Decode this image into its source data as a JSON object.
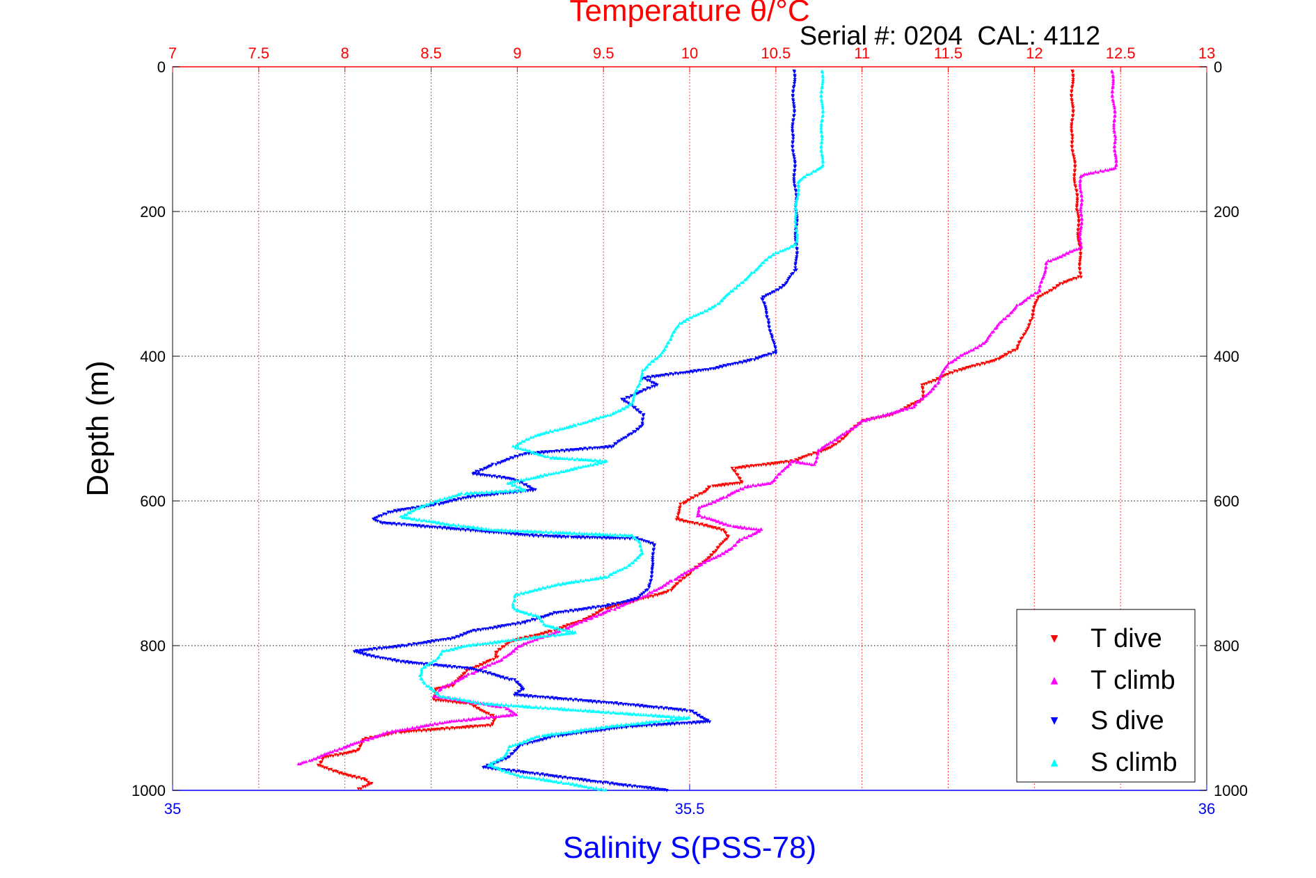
{
  "chart_data": {
    "type": "scatter",
    "title": "Temperature θ/°C",
    "subtitle": "Serial #: 0204  CAL: 4112",
    "xlabel": "Salinity S(PSS-78)",
    "ylabel": "Depth (m)",
    "temperature_axis": {
      "label": "Temperature θ/°C",
      "range": [
        7,
        13
      ],
      "ticks": [
        "7",
        "7.5",
        "8",
        "8.5",
        "9",
        "9.5",
        "10",
        "10.5",
        "11",
        "11.5",
        "12",
        "12.5",
        "13"
      ],
      "color": "#ff0000"
    },
    "salinity_axis": {
      "label": "Salinity S(PSS-78)",
      "range": [
        35,
        36
      ],
      "ticks": [
        "35",
        "35.5",
        "36"
      ],
      "color": "#0000ff"
    },
    "depth_axis": {
      "range": [
        0,
        1000
      ],
      "reversed": true,
      "ticks": [
        "0",
        "200",
        "400",
        "600",
        "800",
        "1000"
      ]
    },
    "grid": true,
    "legend_position": "bottom-right",
    "series": [
      {
        "name": "T dive",
        "axis": "temperature",
        "color": "#ff0000",
        "marker": "triangle-down",
        "points": [
          [
            12.22,
            5
          ],
          [
            12.22,
            100
          ],
          [
            12.25,
            200
          ],
          [
            12.27,
            290
          ],
          [
            12.15,
            300
          ],
          [
            12.02,
            320
          ],
          [
            11.98,
            350
          ],
          [
            11.9,
            390
          ],
          [
            11.78,
            405
          ],
          [
            11.55,
            420
          ],
          [
            11.35,
            440
          ],
          [
            11.35,
            460
          ],
          [
            11.18,
            480
          ],
          [
            11.0,
            490
          ],
          [
            10.83,
            525
          ],
          [
            10.6,
            545
          ],
          [
            10.25,
            555
          ],
          [
            10.3,
            575
          ],
          [
            10.12,
            580
          ],
          [
            10.08,
            588
          ],
          [
            9.95,
            605
          ],
          [
            9.92,
            625
          ],
          [
            10.2,
            640
          ],
          [
            10.22,
            650
          ],
          [
            10.15,
            670
          ],
          [
            10.0,
            700
          ],
          [
            9.88,
            725
          ],
          [
            9.65,
            740
          ],
          [
            9.5,
            750
          ],
          [
            9.38,
            765
          ],
          [
            9.2,
            780
          ],
          [
            8.95,
            795
          ],
          [
            8.88,
            810
          ],
          [
            8.88,
            815
          ],
          [
            8.85,
            820
          ],
          [
            8.7,
            835
          ],
          [
            8.63,
            855
          ],
          [
            8.52,
            860
          ],
          [
            8.52,
            875
          ],
          [
            8.72,
            880
          ],
          [
            8.88,
            900
          ],
          [
            8.85,
            910
          ],
          [
            8.3,
            920
          ],
          [
            8.1,
            930
          ],
          [
            8.08,
            945
          ],
          [
            7.87,
            955
          ],
          [
            7.85,
            965
          ],
          [
            7.95,
            975
          ],
          [
            8.12,
            985
          ],
          [
            8.15,
            990
          ],
          [
            8.07,
            1000
          ]
        ]
      },
      {
        "name": "T climb",
        "axis": "temperature",
        "color": "#ff00ff",
        "marker": "triangle-up",
        "points": [
          [
            12.45,
            5
          ],
          [
            12.47,
            100
          ],
          [
            12.47,
            140
          ],
          [
            12.27,
            150
          ],
          [
            12.27,
            200
          ],
          [
            12.27,
            250
          ],
          [
            12.07,
            270
          ],
          [
            12.03,
            310
          ],
          [
            11.9,
            330
          ],
          [
            11.78,
            360
          ],
          [
            11.72,
            380
          ],
          [
            11.5,
            410
          ],
          [
            11.43,
            440
          ],
          [
            11.3,
            470
          ],
          [
            11.0,
            490
          ],
          [
            10.85,
            515
          ],
          [
            10.75,
            530
          ],
          [
            10.72,
            550
          ],
          [
            10.6,
            545
          ],
          [
            10.55,
            555
          ],
          [
            10.48,
            575
          ],
          [
            10.33,
            580
          ],
          [
            10.2,
            595
          ],
          [
            10.05,
            610
          ],
          [
            10.05,
            620
          ],
          [
            10.25,
            635
          ],
          [
            10.42,
            640
          ],
          [
            10.28,
            655
          ],
          [
            10.25,
            665
          ],
          [
            10.05,
            690
          ],
          [
            9.9,
            710
          ],
          [
            9.75,
            730
          ],
          [
            9.55,
            750
          ],
          [
            9.42,
            762
          ],
          [
            9.25,
            780
          ],
          [
            9.12,
            790
          ],
          [
            9.02,
            800
          ],
          [
            8.9,
            820
          ],
          [
            8.72,
            840
          ],
          [
            8.55,
            860
          ],
          [
            8.52,
            870
          ],
          [
            8.92,
            885
          ],
          [
            9.0,
            895
          ],
          [
            8.6,
            905
          ],
          [
            8.25,
            920
          ],
          [
            8.0,
            940
          ],
          [
            7.78,
            960
          ],
          [
            7.72,
            965
          ]
        ]
      },
      {
        "name": "S dive",
        "axis": "salinity",
        "color": "#0000ff",
        "marker": "triangle-down",
        "points": [
          [
            35.601,
            5
          ],
          [
            35.6,
            100
          ],
          [
            35.603,
            200
          ],
          [
            35.603,
            280
          ],
          [
            35.593,
            300
          ],
          [
            35.58,
            312
          ],
          [
            35.57,
            320
          ],
          [
            35.576,
            350
          ],
          [
            35.58,
            375
          ],
          [
            35.583,
            395
          ],
          [
            35.56,
            405
          ],
          [
            35.52,
            418
          ],
          [
            35.455,
            430
          ],
          [
            35.468,
            440
          ],
          [
            35.435,
            460
          ],
          [
            35.455,
            480
          ],
          [
            35.455,
            495
          ],
          [
            35.44,
            510
          ],
          [
            35.425,
            525
          ],
          [
            35.34,
            535
          ],
          [
            35.31,
            550
          ],
          [
            35.29,
            562
          ],
          [
            35.33,
            570
          ],
          [
            35.35,
            585
          ],
          [
            35.315,
            590
          ],
          [
            35.285,
            595
          ],
          [
            35.255,
            605
          ],
          [
            35.21,
            615
          ],
          [
            35.195,
            625
          ],
          [
            35.2,
            630
          ],
          [
            35.35,
            648
          ],
          [
            35.385,
            650
          ],
          [
            35.45,
            652
          ],
          [
            35.465,
            660
          ],
          [
            35.465,
            690
          ],
          [
            35.46,
            720
          ],
          [
            35.45,
            735
          ],
          [
            35.42,
            745
          ],
          [
            35.37,
            755
          ],
          [
            35.34,
            768
          ],
          [
            35.29,
            780
          ],
          [
            35.27,
            790
          ],
          [
            35.225,
            800
          ],
          [
            35.175,
            808
          ],
          [
            35.195,
            815
          ],
          [
            35.22,
            822
          ],
          [
            35.29,
            832
          ],
          [
            35.33,
            848
          ],
          [
            35.34,
            860
          ],
          [
            35.33,
            868
          ],
          [
            35.43,
            880
          ],
          [
            35.5,
            890
          ],
          [
            35.52,
            905
          ],
          [
            35.44,
            912
          ],
          [
            35.37,
            925
          ],
          [
            35.335,
            938
          ],
          [
            35.325,
            955
          ],
          [
            35.3,
            968
          ],
          [
            35.34,
            975
          ],
          [
            35.42,
            990
          ],
          [
            35.48,
            1000
          ]
        ]
      },
      {
        "name": "S climb",
        "axis": "salinity",
        "color": "#00ffff",
        "marker": "triangle-up",
        "points": [
          [
            35.628,
            5
          ],
          [
            35.628,
            100
          ],
          [
            35.628,
            138
          ],
          [
            35.615,
            148
          ],
          [
            35.605,
            160
          ],
          [
            35.603,
            200
          ],
          [
            35.603,
            245
          ],
          [
            35.58,
            260
          ],
          [
            35.56,
            285
          ],
          [
            35.545,
            305
          ],
          [
            35.525,
            330
          ],
          [
            35.49,
            355
          ],
          [
            35.48,
            380
          ],
          [
            35.47,
            400
          ],
          [
            35.455,
            420
          ],
          [
            35.45,
            440
          ],
          [
            35.445,
            465
          ],
          [
            35.425,
            480
          ],
          [
            35.39,
            495
          ],
          [
            35.35,
            510
          ],
          [
            35.33,
            525
          ],
          [
            35.365,
            540
          ],
          [
            35.42,
            545
          ],
          [
            35.375,
            560
          ],
          [
            35.325,
            575
          ],
          [
            35.34,
            585
          ],
          [
            35.28,
            590
          ],
          [
            35.255,
            600
          ],
          [
            35.235,
            612
          ],
          [
            35.22,
            622
          ],
          [
            35.27,
            633
          ],
          [
            35.31,
            640
          ],
          [
            35.445,
            648
          ],
          [
            35.45,
            655
          ],
          [
            35.455,
            672
          ],
          [
            35.44,
            690
          ],
          [
            35.42,
            705
          ],
          [
            35.37,
            716
          ],
          [
            35.355,
            722
          ],
          [
            35.33,
            730
          ],
          [
            35.33,
            742
          ],
          [
            35.33,
            750
          ],
          [
            35.355,
            760
          ],
          [
            35.36,
            772
          ],
          [
            35.39,
            782
          ],
          [
            35.34,
            790
          ],
          [
            35.285,
            800
          ],
          [
            35.26,
            808
          ],
          [
            35.255,
            820
          ],
          [
            35.24,
            832
          ],
          [
            35.24,
            842
          ],
          [
            35.245,
            855
          ],
          [
            35.26,
            870
          ],
          [
            35.3,
            880
          ],
          [
            35.35,
            885
          ],
          [
            35.43,
            893
          ],
          [
            35.5,
            900
          ],
          [
            35.42,
            912
          ],
          [
            35.355,
            925
          ],
          [
            35.325,
            940
          ],
          [
            35.32,
            955
          ],
          [
            35.305,
            965
          ],
          [
            35.335,
            980
          ],
          [
            35.38,
            990
          ],
          [
            35.42,
            1000
          ]
        ]
      }
    ]
  }
}
